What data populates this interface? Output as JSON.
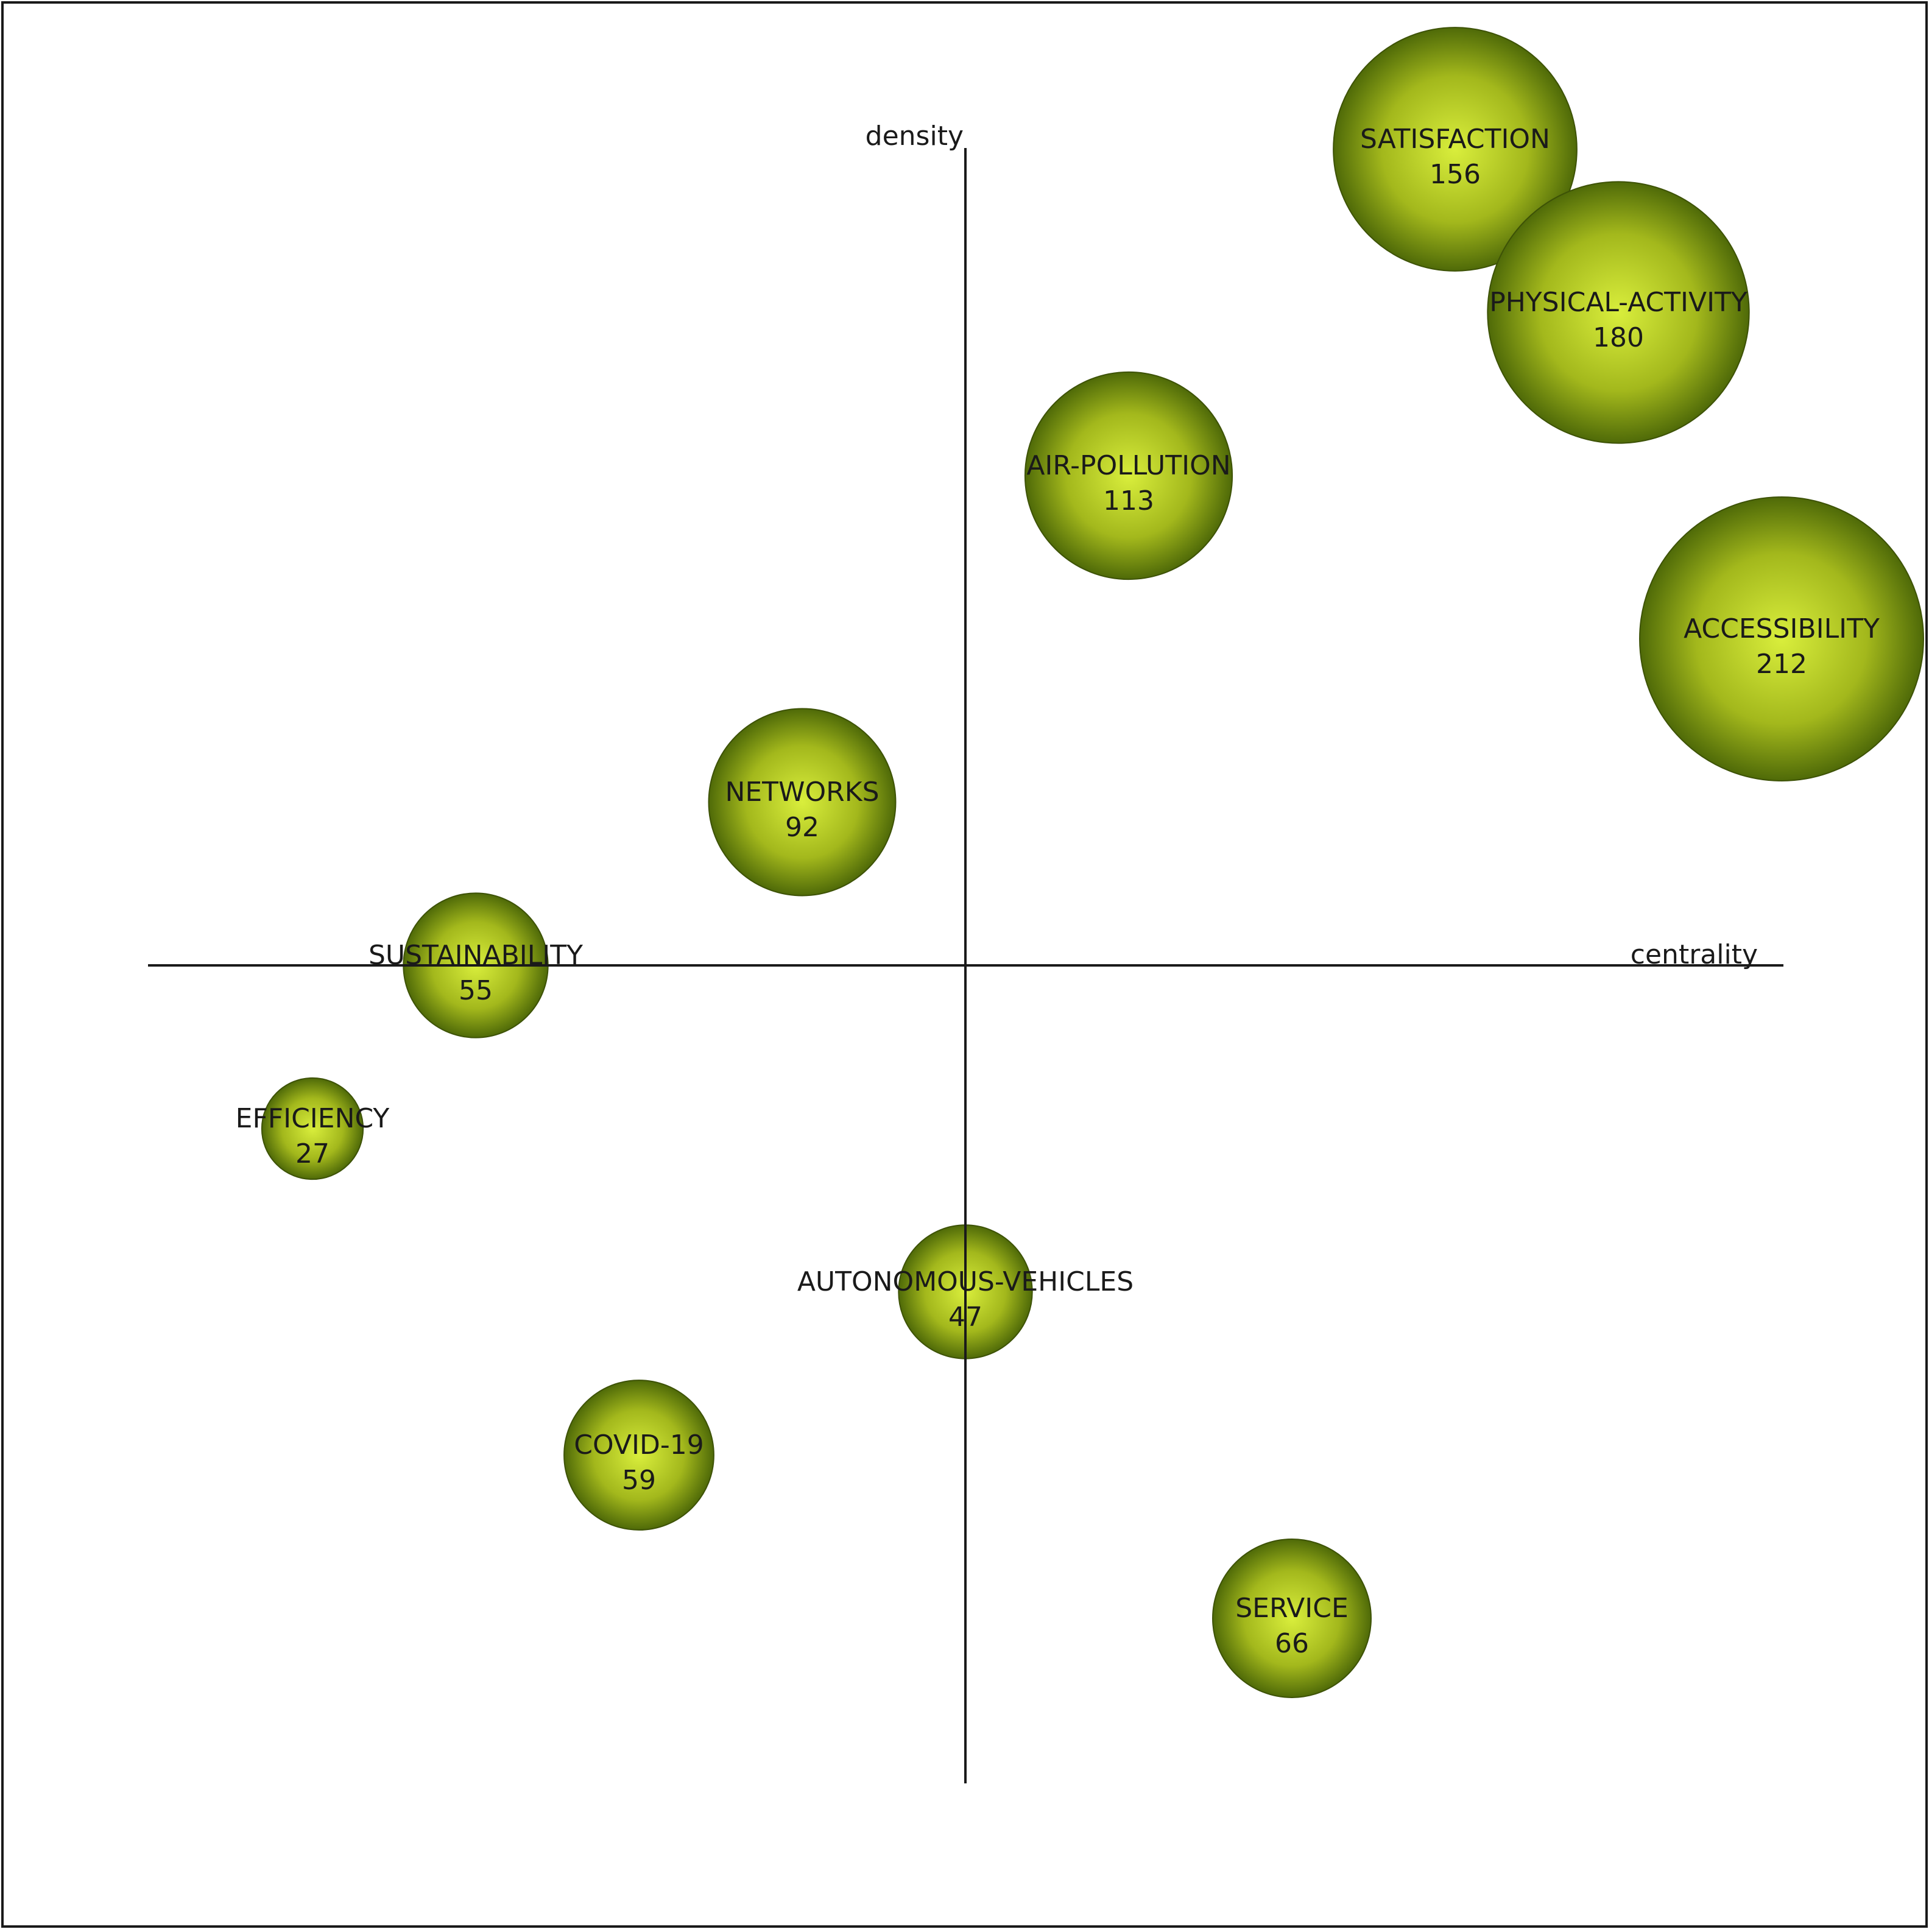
{
  "chart_data": {
    "type": "scatter",
    "subtype": "strategic-diagram-bubble",
    "title": "",
    "xlabel": "centrality",
    "ylabel": "density",
    "axis_labels": {
      "x": "centrality",
      "y": "density"
    },
    "grid": false,
    "legend": "none",
    "xlim": [
      -1,
      1
    ],
    "ylim": [
      -1,
      1
    ],
    "bubble_color": "#a3b81c",
    "bubble_highlight": "#d9ee3c",
    "bubble_shadow": "#4f6a08",
    "points": [
      {
        "label": "SATISFACTION",
        "value": 156,
        "x": 0.6,
        "y": 1.0
      },
      {
        "label": "PHYSICAL-ACTIVITY",
        "value": 180,
        "x": 0.8,
        "y": 0.8
      },
      {
        "label": "AIR-POLLUTION",
        "value": 113,
        "x": 0.2,
        "y": 0.6
      },
      {
        "label": "ACCESSIBILITY",
        "value": 212,
        "x": 1.0,
        "y": 0.4
      },
      {
        "label": "NETWORKS",
        "value": 92,
        "x": -0.2,
        "y": 0.2
      },
      {
        "label": "SUSTAINABILITY",
        "value": 55,
        "x": -0.6,
        "y": 0.0
      },
      {
        "label": "EFFICIENCY",
        "value": 27,
        "x": -0.8,
        "y": -0.2
      },
      {
        "label": "AUTONOMOUS-VEHICLES",
        "value": 47,
        "x": 0.0,
        "y": -0.4
      },
      {
        "label": "COVID-19",
        "value": 59,
        "x": -0.4,
        "y": -0.6
      },
      {
        "label": "SERVICE",
        "value": 66,
        "x": 0.4,
        "y": -0.8
      }
    ]
  }
}
